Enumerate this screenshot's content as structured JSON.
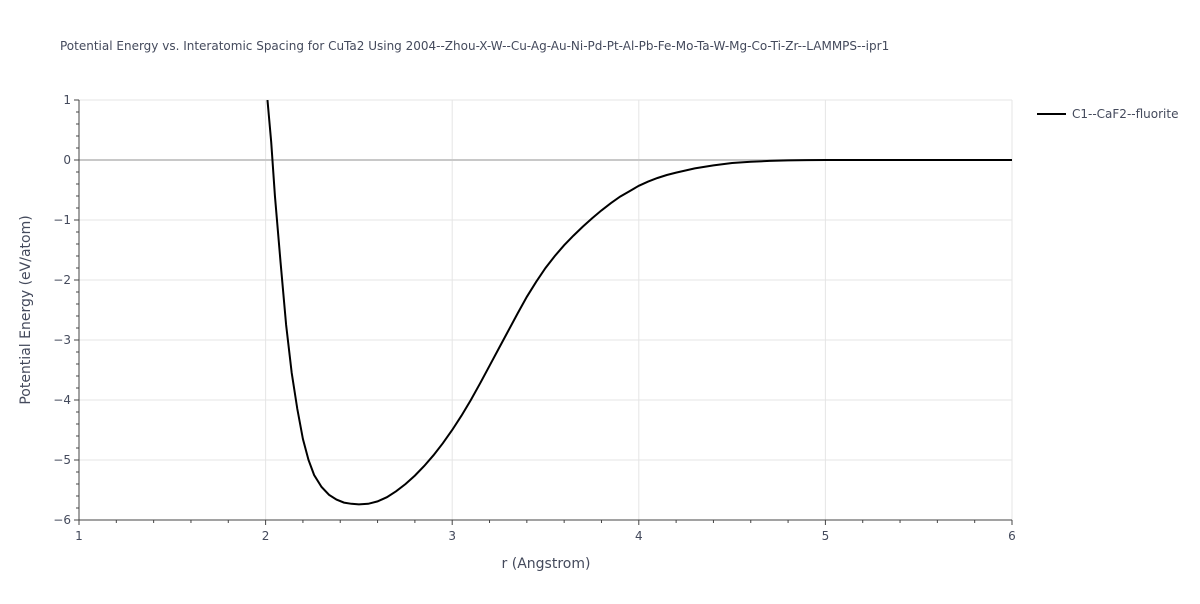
{
  "chart_data": {
    "type": "line",
    "title": "Potential Energy vs. Interatomic Spacing for CuTa2 Using 2004--Zhou-X-W--Cu-Ag-Au-Ni-Pd-Pt-Al-Pb-Fe-Mo-Ta-W-Mg-Co-Ti-Zr--LAMMPS--ipr1",
    "xlabel": "r (Angstrom)",
    "ylabel": "Potential Energy (eV/atom)",
    "xlim": [
      1,
      6
    ],
    "ylim": [
      -6,
      1
    ],
    "x_ticks": [
      1,
      2,
      3,
      4,
      5,
      6
    ],
    "y_ticks": [
      1,
      0,
      -1,
      -2,
      -3,
      -4,
      -5,
      -6
    ],
    "x_tick_labels": [
      "1",
      "2",
      "3",
      "4",
      "5",
      "6"
    ],
    "y_tick_labels": [
      "1",
      "0",
      "−1",
      "−2",
      "−3",
      "−4",
      "−5",
      "−6"
    ],
    "grid": true,
    "legend_position": "top-right",
    "colors": {
      "series": "#000000",
      "grid": "#e5e5e5",
      "zeroline": "#c8c8c8",
      "text": "#444a5c"
    },
    "series": [
      {
        "name": "C1--CaF2--fluorite",
        "color": "#000000",
        "x": [
          2.01,
          2.03,
          2.05,
          2.08,
          2.11,
          2.14,
          2.17,
          2.2,
          2.23,
          2.26,
          2.3,
          2.34,
          2.38,
          2.42,
          2.46,
          2.5,
          2.55,
          2.6,
          2.65,
          2.7,
          2.75,
          2.8,
          2.85,
          2.9,
          2.95,
          3.0,
          3.05,
          3.1,
          3.15,
          3.2,
          3.25,
          3.3,
          3.35,
          3.4,
          3.45,
          3.5,
          3.55,
          3.6,
          3.65,
          3.7,
          3.75,
          3.8,
          3.85,
          3.9,
          3.95,
          4.0,
          4.05,
          4.1,
          4.15,
          4.2,
          4.3,
          4.4,
          4.5,
          4.6,
          4.7,
          4.8,
          4.9,
          5.0,
          5.2,
          5.4,
          5.6,
          5.8,
          6.0
        ],
        "y": [
          1.0,
          0.3,
          -0.6,
          -1.7,
          -2.75,
          -3.55,
          -4.15,
          -4.65,
          -5.0,
          -5.25,
          -5.45,
          -5.58,
          -5.66,
          -5.71,
          -5.73,
          -5.74,
          -5.73,
          -5.69,
          -5.62,
          -5.52,
          -5.4,
          -5.26,
          -5.1,
          -4.92,
          -4.72,
          -4.5,
          -4.26,
          -4.0,
          -3.72,
          -3.43,
          -3.14,
          -2.85,
          -2.56,
          -2.28,
          -2.03,
          -1.8,
          -1.6,
          -1.42,
          -1.26,
          -1.11,
          -0.97,
          -0.84,
          -0.72,
          -0.61,
          -0.52,
          -0.43,
          -0.36,
          -0.3,
          -0.25,
          -0.21,
          -0.14,
          -0.09,
          -0.05,
          -0.03,
          -0.015,
          -0.007,
          -0.003,
          -0.001,
          0.0,
          0.0,
          0.0,
          0.0,
          0.0
        ]
      }
    ]
  }
}
